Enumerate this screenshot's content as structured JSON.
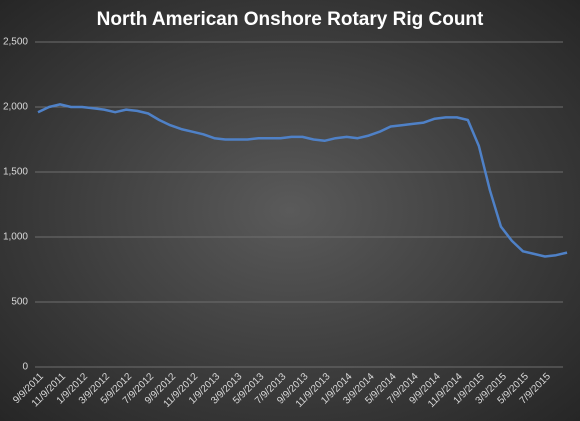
{
  "chart_data": {
    "type": "line",
    "title": "North American Onshore Rotary Rig Count",
    "categories": [
      "9/9/2011",
      null,
      "11/9/2011",
      null,
      "1/9/2012",
      null,
      "3/9/2012",
      null,
      "5/9/2012",
      null,
      "7/9/2012",
      null,
      "9/9/2012",
      null,
      "11/9/2012",
      null,
      "1/9/2013",
      null,
      "3/9/2013",
      null,
      "5/9/2013",
      null,
      "7/9/2013",
      null,
      "9/9/2013",
      null,
      "11/9/2013",
      null,
      "1/9/2014",
      null,
      "3/9/2014",
      null,
      "5/9/2014",
      null,
      "7/9/2014",
      null,
      "9/9/2014",
      null,
      "11/9/2014",
      null,
      "1/9/2015",
      null,
      "3/9/2015",
      null,
      "5/9/2015",
      null,
      "7/9/2015",
      null,
      null
    ],
    "series": [
      {
        "color": "#4f81c7",
        "values": [
          1960,
          2000,
          2020,
          2000,
          2000,
          1990,
          1980,
          1960,
          1980,
          1970,
          1950,
          1900,
          1860,
          1830,
          1810,
          1790,
          1760,
          1750,
          1750,
          1750,
          1760,
          1760,
          1760,
          1770,
          1770,
          1750,
          1740,
          1760,
          1770,
          1760,
          1780,
          1810,
          1850,
          1860,
          1870,
          1880,
          1910,
          1920,
          1920,
          1900,
          1700,
          1360,
          1080,
          970,
          890,
          870,
          850,
          860,
          880
        ]
      }
    ],
    "ylim": [
      0,
      2500
    ],
    "yticks": [
      0,
      500,
      {
        "value": 1000,
        "label": "1,000"
      },
      {
        "value": 1500,
        "label": "1,500"
      },
      {
        "value": 2000,
        "label": "2,000"
      },
      {
        "value": 2500,
        "label": "2,500"
      }
    ],
    "grid": true
  }
}
